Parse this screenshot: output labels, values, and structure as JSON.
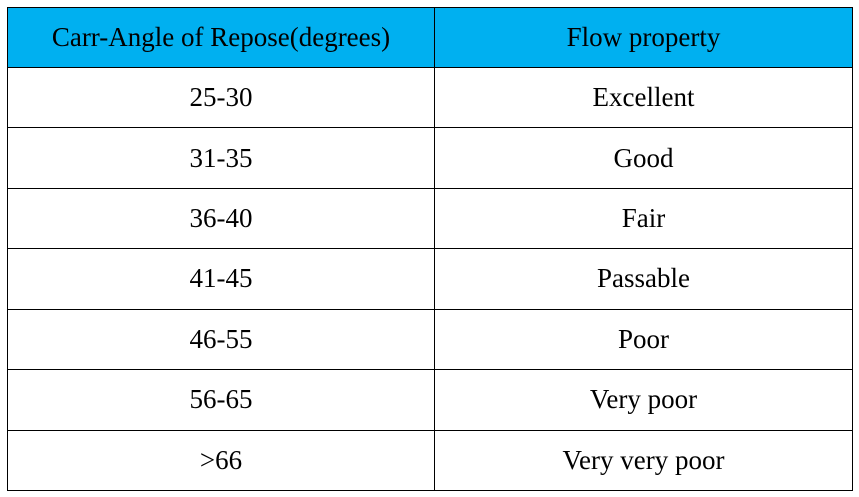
{
  "table": {
    "header_color": "#00b0f0",
    "columns": [
      "Carr-Angle of Repose(degrees)",
      "Flow property"
    ],
    "rows": [
      [
        "25-30",
        "Excellent"
      ],
      [
        "31-35",
        "Good"
      ],
      [
        "36-40",
        "Fair"
      ],
      [
        "41-45",
        "Passable"
      ],
      [
        "46-55",
        "Poor"
      ],
      [
        "56-65",
        "Very poor"
      ],
      [
        ">66",
        "Very very poor"
      ]
    ]
  }
}
